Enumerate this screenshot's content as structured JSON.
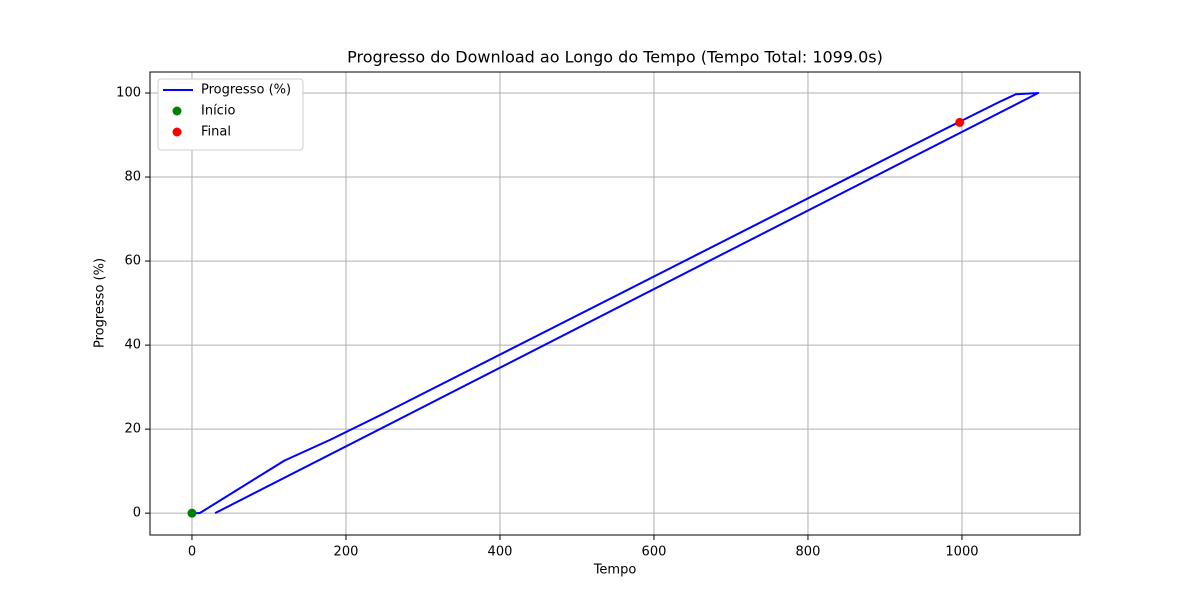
{
  "chart_data": {
    "type": "line",
    "title": "Progresso do Download ao Longo do Tempo (Tempo Total: 1099.0s)",
    "xlabel": "Tempo",
    "ylabel": "Progresso (%)",
    "xlim": [
      -54.5,
      1153.3
    ],
    "ylim": [
      -5.2,
      105
    ],
    "xticks": [
      0,
      200,
      400,
      600,
      800,
      1000
    ],
    "yticks": [
      0,
      20,
      40,
      60,
      80,
      100
    ],
    "grid": true,
    "legend": "upper left",
    "series": [
      {
        "name": "Progresso (%)",
        "color": "#0000ff",
        "x": [
          0,
          10,
          120,
          180,
          250,
          860,
          970,
          1050,
          1070,
          1099,
          30
        ],
        "values": [
          0,
          0,
          12.5,
          17.5,
          23.8,
          80.5,
          90.7,
          98,
          99.7,
          100,
          0
        ]
      },
      {
        "name": "Início",
        "color": "#008000",
        "type": "scatter",
        "x": [
          0
        ],
        "values": [
          0
        ]
      },
      {
        "name": "Final",
        "color": "#ff0000",
        "type": "scatter",
        "x": [
          997
        ],
        "values": [
          93
        ]
      }
    ]
  }
}
